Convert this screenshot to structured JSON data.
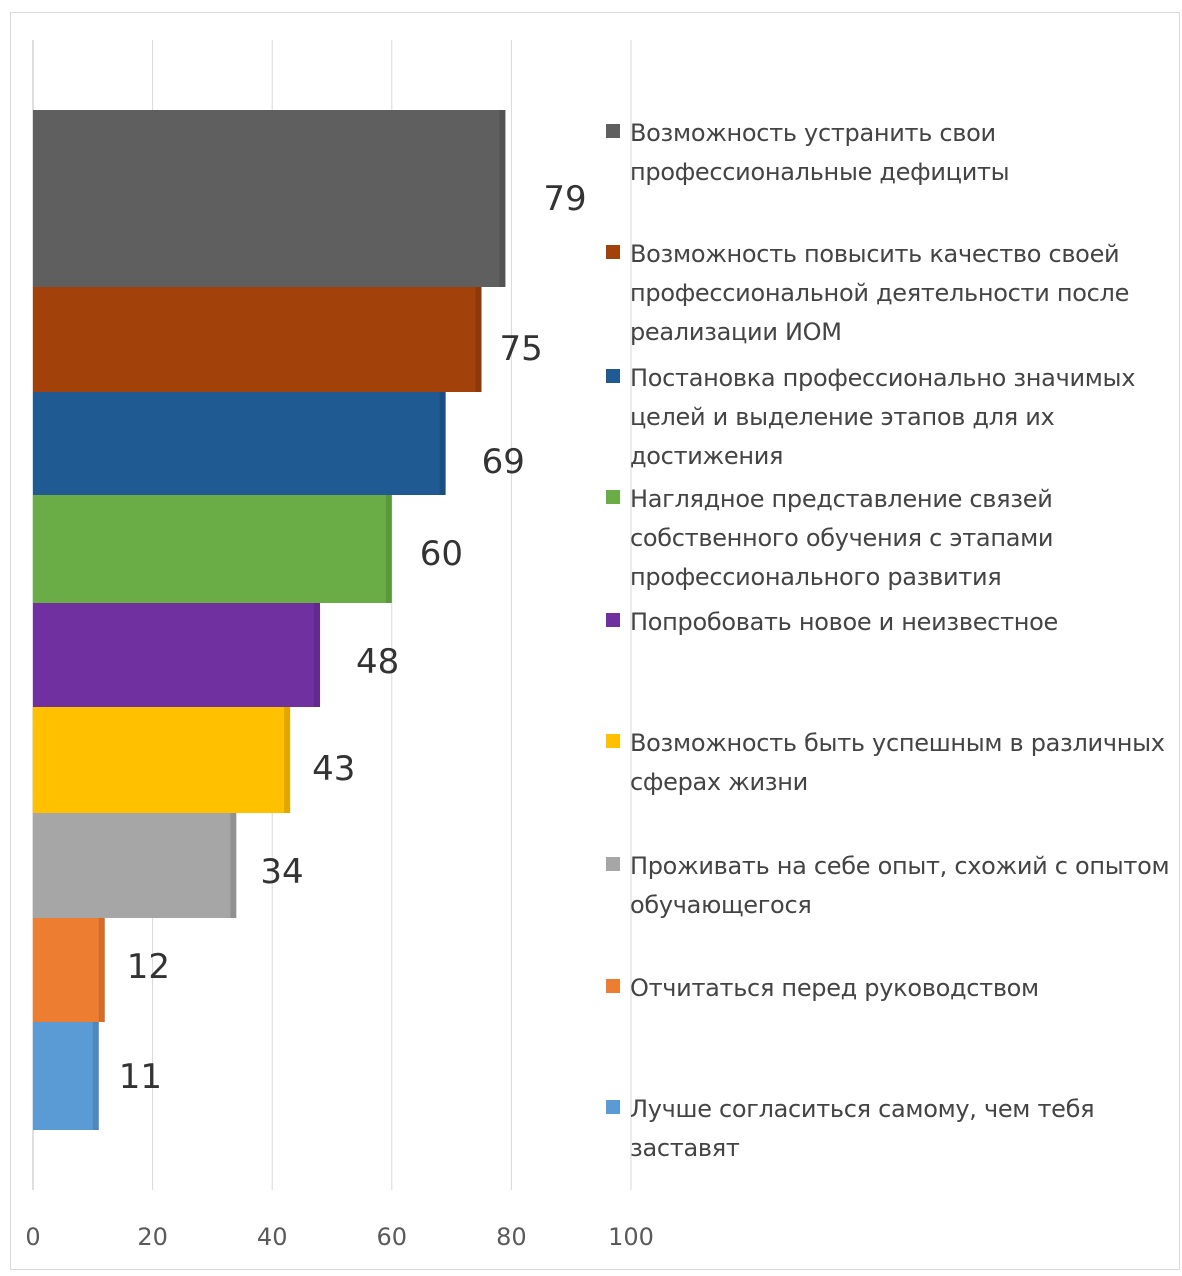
{
  "chart_data": {
    "type": "bar",
    "orientation": "horizontal",
    "title": "",
    "xlabel": "",
    "ylabel": "",
    "xlim": [
      0,
      100
    ],
    "xticks": [
      "0",
      "20",
      "40",
      "60",
      "80",
      "100"
    ],
    "grid": true,
    "legend_position": "right",
    "categories": [
      "Возможность устранить свои профессиональные дефициты",
      "Возможность повысить качество своей профессиональной деятельности после реализации ИОМ",
      "Постановка профессионально значимых целей и выделение этапов для их достижения",
      "Наглядное представление связей собственного обучения с этапами профессионального развития",
      "Попробовать новое и неизвестное",
      "Возможность быть успешным в различных сферах жизни",
      "Проживать на себе опыт, схожий с опытом обучающегося",
      "Отчитаться перед руководством",
      "Лучше согласиться самому, чем тебя заставят"
    ],
    "values": [
      79,
      75,
      69,
      60,
      48,
      43,
      34,
      12,
      11
    ],
    "data_labels": [
      "79",
      "75",
      "69",
      "60",
      "48",
      "43",
      "34",
      "12",
      "11"
    ],
    "colors": [
      "#5f5f5f",
      "#a3410b",
      "#1f5a93",
      "#6aac46",
      "#7030a0",
      "#ffc000",
      "#a6a6a6",
      "#ed7d31",
      "#5b9bd5"
    ]
  }
}
